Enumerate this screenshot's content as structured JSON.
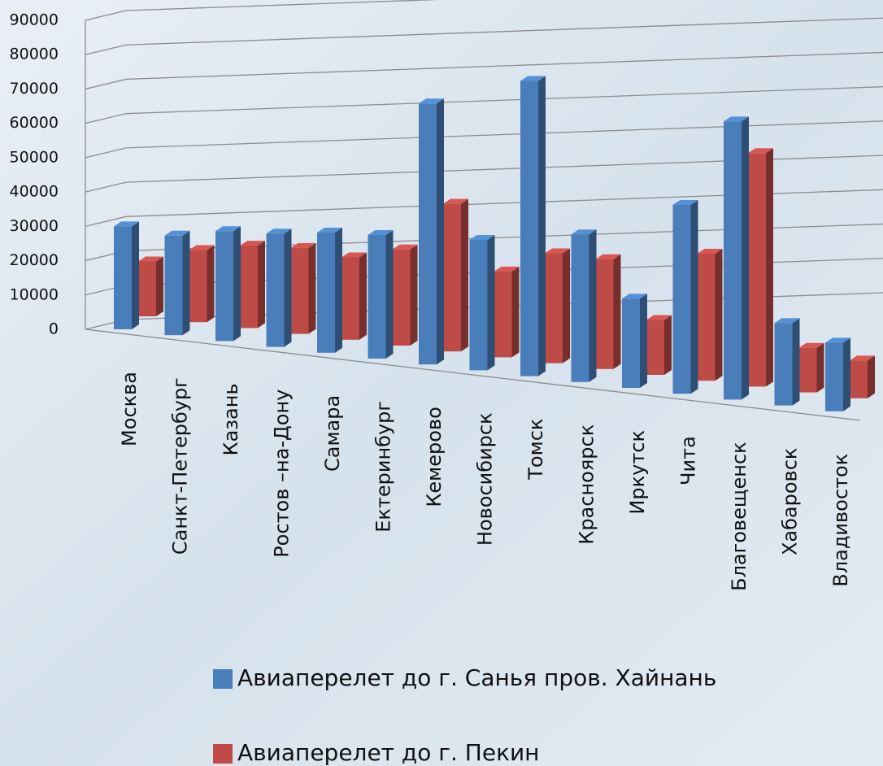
{
  "chart_data": {
    "type": "bar3d",
    "categories": [
      "Москва",
      "Санкт-Петербург",
      "Казань",
      "Ростов –на-Дону",
      "Самара",
      "Ектеринбург",
      "Кемерово",
      "Новосибирск",
      "Томск",
      "Красноярск",
      "Иркутск",
      "Чита",
      "Благовещенск",
      "Хабаровск",
      "Владивосток"
    ],
    "series": [
      {
        "name": "Авиаперелет до г. Санья пров. Хайнань",
        "color": "#4a7ebb",
        "values": [
          30000,
          29000,
          32000,
          33000,
          35000,
          36000,
          76000,
          38000,
          86000,
          43000,
          26000,
          55000,
          81000,
          24000,
          20000
        ]
      },
      {
        "name": "Авиаперелет до г. Пекин",
        "color": "#be4b48",
        "values": [
          16000,
          21000,
          24000,
          25000,
          24000,
          28000,
          43000,
          25000,
          32000,
          32000,
          16000,
          37000,
          68000,
          13000,
          11000
        ]
      }
    ],
    "ylim": [
      0,
      90000
    ],
    "yticks": [
      0,
      10000,
      20000,
      30000,
      40000,
      50000,
      60000,
      70000,
      80000,
      90000
    ],
    "grid": true
  }
}
